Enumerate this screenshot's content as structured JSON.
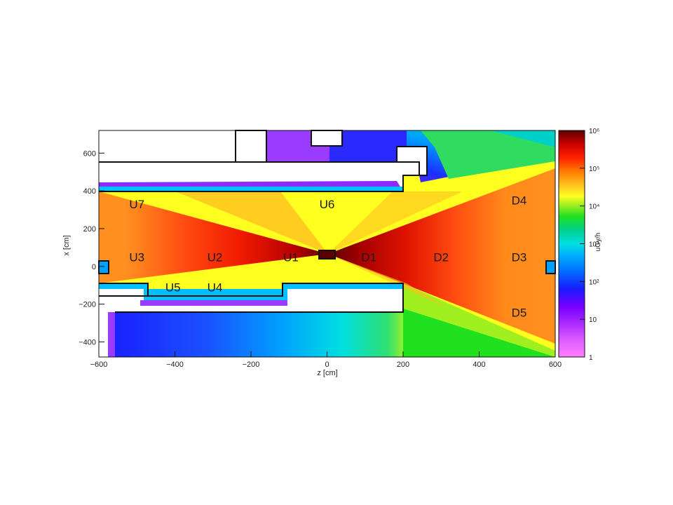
{
  "chart_data": {
    "type": "heatmap",
    "xlabel": "z [cm]",
    "ylabel": "x [cm]",
    "xlim": [
      -600,
      600
    ],
    "ylim": [
      -480,
      720
    ],
    "x_ticks": [
      -600,
      -400,
      -200,
      0,
      200,
      400,
      600
    ],
    "y_ticks": [
      -400,
      -200,
      0,
      200,
      400,
      600
    ],
    "x_tick_labels": [
      "−600",
      "−400",
      "−200",
      "0",
      "200",
      "400",
      "600"
    ],
    "y_tick_labels": [
      "−400",
      "−200",
      "0",
      "200",
      "400",
      "600"
    ],
    "colorbar": {
      "title": "uGy/h",
      "scale": "log",
      "range": [
        1,
        1000000
      ],
      "tick_values": [
        1,
        10,
        100,
        1000,
        10000,
        100000,
        1000000
      ],
      "tick_labels": [
        "1",
        "10",
        "10²",
        "10³",
        "10⁴",
        "10⁵",
        "10⁶"
      ],
      "colors": [
        "#ff7fff",
        "#cc33ff",
        "#7a00ff",
        "#1a1aff",
        "#00a0ff",
        "#00e0e0",
        "#00d090",
        "#20e020",
        "#a0f020",
        "#ffff20",
        "#ffc020",
        "#ff7a00",
        "#ff2000",
        "#cc0000",
        "#5a0000"
      ]
    },
    "regions": [
      {
        "name": "U7",
        "z": -500,
        "x": 330
      },
      {
        "name": "U6",
        "z": 0,
        "x": 330
      },
      {
        "name": "D4",
        "z": 505,
        "x": 350
      },
      {
        "name": "U3",
        "z": -500,
        "x": 50
      },
      {
        "name": "U2",
        "z": -295,
        "x": 50
      },
      {
        "name": "U1",
        "z": -95,
        "x": 50
      },
      {
        "name": "D1",
        "z": 110,
        "x": 50
      },
      {
        "name": "D2",
        "z": 300,
        "x": 50
      },
      {
        "name": "D3",
        "z": 505,
        "x": 50
      },
      {
        "name": "U5",
        "z": -405,
        "x": -110
      },
      {
        "name": "U4",
        "z": -295,
        "x": -110
      },
      {
        "name": "D5",
        "z": 505,
        "x": -245
      }
    ]
  }
}
